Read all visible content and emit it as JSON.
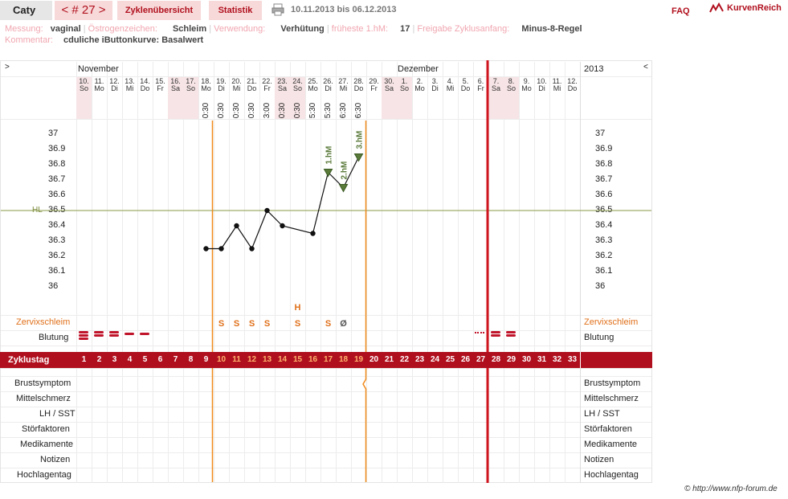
{
  "header": {
    "name": "Caty",
    "cycle_label": "< # 27 >",
    "tab_overview": "Zyklenübersicht",
    "tab_stats": "Statistik",
    "date_range": "10.11.2013 bis 06.12.2013",
    "faq": "FAQ",
    "logo_text": "KurvenReich"
  },
  "info": {
    "messung_label": "Messung:",
    "messung": "vaginal",
    "oestrogen_label": "Östrogenzeichen:",
    "oestrogen": "Schleim",
    "verwendung_label": "Verwendung:",
    "verwendung": "Verhütung",
    "hm_label": "früheste 1.hM:",
    "hm": "17",
    "freigabe_label": "Freigabe Zyklusanfang:",
    "freigabe": "Minus-8-Regel",
    "kommentar_label": "Kommentar:",
    "kommentar": "cduliche iButtonkurve: Basalwert"
  },
  "chart_header": {
    "left_arrow": ">",
    "right_arrow": "<",
    "month_nov": "November",
    "month_dez": "Dezember",
    "year": "2013"
  },
  "days": [
    {
      "d": "10.",
      "w": "So",
      "we": true
    },
    {
      "d": "11.",
      "w": "Mo",
      "we": false
    },
    {
      "d": "12.",
      "w": "Di",
      "we": false
    },
    {
      "d": "13.",
      "w": "Mi",
      "we": false
    },
    {
      "d": "14.",
      "w": "Do",
      "we": false
    },
    {
      "d": "15.",
      "w": "Fr",
      "we": false
    },
    {
      "d": "16.",
      "w": "Sa",
      "we": true
    },
    {
      "d": "17.",
      "w": "So",
      "we": true
    },
    {
      "d": "18.",
      "w": "Mo",
      "we": false
    },
    {
      "d": "19.",
      "w": "Di",
      "we": false
    },
    {
      "d": "20.",
      "w": "Mi",
      "we": false
    },
    {
      "d": "21.",
      "w": "Do",
      "we": false
    },
    {
      "d": "22.",
      "w": "Fr",
      "we": false
    },
    {
      "d": "23.",
      "w": "Sa",
      "we": true
    },
    {
      "d": "24.",
      "w": "So",
      "we": true
    },
    {
      "d": "25.",
      "w": "Mo",
      "we": false
    },
    {
      "d": "26.",
      "w": "Di",
      "we": false
    },
    {
      "d": "27.",
      "w": "Mi",
      "we": false
    },
    {
      "d": "28.",
      "w": "Do",
      "we": false
    },
    {
      "d": "29.",
      "w": "Fr",
      "we": false
    },
    {
      "d": "30.",
      "w": "Sa",
      "we": true
    },
    {
      "d": "1.",
      "w": "So",
      "we": true
    },
    {
      "d": "2.",
      "w": "Mo",
      "we": false
    },
    {
      "d": "3.",
      "w": "Di",
      "we": false
    },
    {
      "d": "4.",
      "w": "Mi",
      "we": false
    },
    {
      "d": "5.",
      "w": "Do",
      "we": false
    },
    {
      "d": "6.",
      "w": "Fr",
      "we": false
    },
    {
      "d": "7.",
      "w": "Sa",
      "we": true
    },
    {
      "d": "8.",
      "w": "So",
      "we": true
    },
    {
      "d": "9.",
      "w": "Mo",
      "we": false
    },
    {
      "d": "10.",
      "w": "Di",
      "we": false
    },
    {
      "d": "11.",
      "w": "Mi",
      "we": false
    },
    {
      "d": "12.",
      "w": "Do",
      "we": false
    }
  ],
  "times": [
    "",
    "",
    "",
    "",
    "",
    "",
    "",
    "",
    "0:30",
    "0:30",
    "0:30",
    "0:30",
    "3:00",
    "0:30",
    "0:30",
    "5:30",
    "5:30",
    "6:30",
    "6:30"
  ],
  "temp_ticks": [
    "37",
    "36.9",
    "36.8",
    "36.7",
    "36.6",
    "36.5",
    "36.4",
    "36.3",
    "36.2",
    "36.1",
    "36"
  ],
  "hl_label": "HL",
  "rows": {
    "zervix": "Zervixschleim",
    "blutung": "Blutung",
    "zyklustag": "Zyklustag",
    "brust": "Brustsymptom",
    "mittel": "Mittelschmerz",
    "lh": "LH / SST",
    "stoer": "Störfaktoren",
    "medi": "Medikamente",
    "notizen": "Notizen",
    "hoch": "Hochlagentag"
  },
  "cycle_days": [
    "1",
    "2",
    "3",
    "4",
    "5",
    "6",
    "7",
    "8",
    "9",
    "10",
    "11",
    "12",
    "13",
    "14",
    "15",
    "16",
    "17",
    "18",
    "19",
    "20",
    "21",
    "22",
    "23",
    "24",
    "25",
    "26",
    "27",
    "28",
    "29",
    "30",
    "31",
    "32",
    "33"
  ],
  "cervix_marks": [
    {
      "day": 10,
      "m": "S"
    },
    {
      "day": 11,
      "m": "S"
    },
    {
      "day": 12,
      "m": "S"
    },
    {
      "day": 13,
      "m": "S"
    },
    {
      "day": 15,
      "m": "S"
    },
    {
      "day": 15,
      "m": "H",
      "top": true
    },
    {
      "day": 17,
      "m": "S"
    },
    {
      "day": 18,
      "m": "Ø"
    }
  ],
  "hm_labels": [
    "1.hM",
    "2.hM",
    "3.hM"
  ],
  "chart_data": {
    "type": "line",
    "x": [
      9,
      10,
      11,
      12,
      13,
      14,
      16,
      17,
      18,
      19
    ],
    "y": [
      36.25,
      36.25,
      36.4,
      36.25,
      36.5,
      36.4,
      36.35,
      36.75,
      36.65,
      36.85
    ],
    "ylim": [
      36.0,
      37.0
    ],
    "hl": 36.5
  },
  "footer": {
    "copyright": "© http://www.nfp-forum.de"
  }
}
